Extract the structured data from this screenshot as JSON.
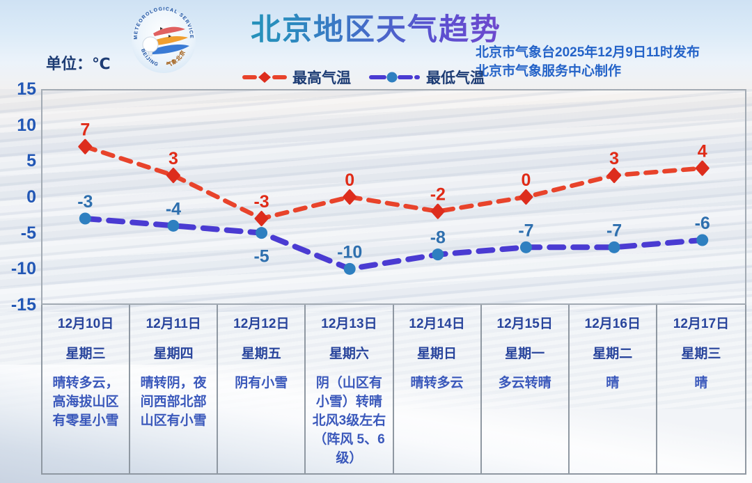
{
  "header": {
    "title": "北京地区天气趋势",
    "unit_label": "单位：℃",
    "issued_line1": "北京市气象台2025年12月9日11时发布",
    "issued_line2": "北京市气象服务中心制作",
    "logo": {
      "text_top": "METEOROLOGICAL SERVICE",
      "text_bottom_left": "BEIJING",
      "text_bottom_right": "气象北京"
    }
  },
  "legend": [
    {
      "label": "最高气温",
      "line_color": "#e8432b",
      "marker_color": "#dd2d1d",
      "marker": "diamond"
    },
    {
      "label": "最低气温",
      "line_color": "#4a3bd2",
      "marker_color": "#2e7fc0",
      "marker": "circle"
    }
  ],
  "chart_data": {
    "type": "line",
    "categories": [
      "12月10日",
      "12月11日",
      "12月12日",
      "12月13日",
      "12月14日",
      "12月15日",
      "12月16日",
      "12月17日"
    ],
    "series": [
      {
        "name": "最高气温",
        "values": [
          7,
          3,
          -3,
          0,
          -2,
          0,
          3,
          4
        ],
        "line_color": "#e8432b",
        "marker_color": "#dd2d1d",
        "label_color": "#e02b17",
        "marker": "diamond",
        "label_below_indices": []
      },
      {
        "name": "最低气温",
        "values": [
          -3,
          -4,
          -5,
          -10,
          -8,
          -7,
          -7,
          -6
        ],
        "line_color": "#4a3bd2",
        "marker_color": "#2e7fc0",
        "label_color": "#2e6fae",
        "marker": "circle",
        "label_below_indices": [
          2
        ]
      }
    ],
    "title": "北京地区天气趋势",
    "xlabel": "",
    "ylabel": "单位：℃",
    "ylim": [
      -15,
      15
    ],
    "yticks": [
      15,
      10,
      5,
      0,
      -5,
      -10,
      -15
    ],
    "grid": false,
    "line_style": "dashed",
    "legend_position": "top"
  },
  "table": {
    "days": [
      {
        "date": "12月10日",
        "weekday": "星期三",
        "weather": "晴转多云，高海拔山区有零星小雪"
      },
      {
        "date": "12月11日",
        "weekday": "星期四",
        "weather": "晴转阴，夜间西部北部山区有小雪"
      },
      {
        "date": "12月12日",
        "weekday": "星期五",
        "weather": "阴有小雪"
      },
      {
        "date": "12月13日",
        "weekday": "星期六",
        "weather": "阴（山区有小雪）转晴\n北风3级左右（阵风 5、6级）"
      },
      {
        "date": "12月14日",
        "weekday": "星期日",
        "weather": "晴转多云"
      },
      {
        "date": "12月15日",
        "weekday": "星期一",
        "weather": "多云转晴"
      },
      {
        "date": "12月16日",
        "weekday": "星期二",
        "weather": "晴"
      },
      {
        "date": "12月17日",
        "weekday": "星期三",
        "weather": "晴"
      }
    ]
  }
}
